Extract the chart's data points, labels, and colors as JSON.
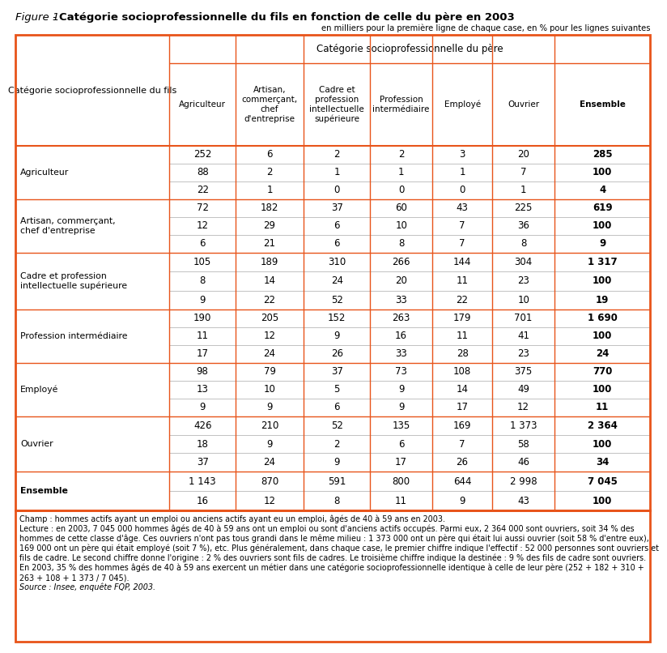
{
  "title_italic": "Figure 1",
  "title_dash": " - ",
  "title_bold": "Catégorie socioprofessionnelle du fils en fonction de celle du père en 2003",
  "subtitle": "en milliers pour la première ligne de chaque case, en % pour les lignes suivantes",
  "orange": "#E8541A",
  "col_header_main": "Catégorie socioprofessionnelle du père",
  "row_header_label": "Catégorie socioprofessionnelle du fils",
  "col_headers": [
    "Agriculteur",
    "Artisan,\ncommerçant,\nchef\nd'entreprise",
    "Cadre et\nprofession\nintellectuelle\nsupérieure",
    "Profession\nintermédiaire",
    "Employé",
    "Ouvrier",
    "Ensemble"
  ],
  "row_labels": [
    "Agriculteur",
    "Artisan, commerçant,\nchef d'entreprise",
    "Cadre et profession\nintellectuelle supérieure",
    "Profession intermédiaire",
    "Employé",
    "Ouvrier",
    "Ensemble"
  ],
  "data": [
    [
      [
        "252",
        "6",
        "2",
        "2",
        "3",
        "20",
        "285"
      ],
      [
        "88",
        "2",
        "1",
        "1",
        "1",
        "7",
        "100"
      ],
      [
        "22",
        "1",
        "0",
        "0",
        "0",
        "1",
        "4"
      ]
    ],
    [
      [
        "72",
        "182",
        "37",
        "60",
        "43",
        "225",
        "619"
      ],
      [
        "12",
        "29",
        "6",
        "10",
        "7",
        "36",
        "100"
      ],
      [
        "6",
        "21",
        "6",
        "8",
        "7",
        "8",
        "9"
      ]
    ],
    [
      [
        "105",
        "189",
        "310",
        "266",
        "144",
        "304",
        "1 317"
      ],
      [
        "8",
        "14",
        "24",
        "20",
        "11",
        "23",
        "100"
      ],
      [
        "9",
        "22",
        "52",
        "33",
        "22",
        "10",
        "19"
      ]
    ],
    [
      [
        "190",
        "205",
        "152",
        "263",
        "179",
        "701",
        "1 690"
      ],
      [
        "11",
        "12",
        "9",
        "16",
        "11",
        "41",
        "100"
      ],
      [
        "17",
        "24",
        "26",
        "33",
        "28",
        "23",
        "24"
      ]
    ],
    [
      [
        "98",
        "79",
        "37",
        "73",
        "108",
        "375",
        "770"
      ],
      [
        "13",
        "10",
        "5",
        "9",
        "14",
        "49",
        "100"
      ],
      [
        "9",
        "9",
        "6",
        "9",
        "17",
        "12",
        "11"
      ]
    ],
    [
      [
        "426",
        "210",
        "52",
        "135",
        "169",
        "1 373",
        "2 364"
      ],
      [
        "18",
        "9",
        "2",
        "6",
        "7",
        "58",
        "100"
      ],
      [
        "37",
        "24",
        "9",
        "17",
        "26",
        "46",
        "34"
      ]
    ],
    [
      [
        "1 143",
        "870",
        "591",
        "800",
        "644",
        "2 998",
        "7 045"
      ],
      [
        "16",
        "12",
        "8",
        "11",
        "9",
        "43",
        "100"
      ]
    ]
  ],
  "footer_lines": [
    "Champ : hommes actifs ayant un emploi ou anciens actifs ayant eu un emploi, âgés de 40 à 59 ans en 2003.",
    "Lecture : en 2003, 7 045 000 hommes âgés de 40 à 59 ans ont un emploi ou sont d'anciens actifs occupés. Parmi eux, 2 364 000 sont ouvriers, soit 34 % des",
    "hommes de cette classe d'âge. Ces ouvriers n'ont pas tous grandi dans le même milieu : 1 373 000 ont un père qui était lui aussi ouvrier (soit 58 % d'entre eux),",
    "169 000 ont un père qui était employé (soit 7 %), etc. Plus généralement, dans chaque case, le premier chiffre indique l'effectif : 52 000 personnes sont ouvriers et",
    "fils de cadre. Le second chiffre donne l'origine : 2 % des ouvriers sont fils de cadres. Le troisième chiffre indique la destinée : 9 % des fils de cadre sont ouvriers.",
    "En 2003, 35 % des hommes âgés de 40 à 59 ans exercent un métier dans une catégorie socioprofessionnelle identique à celle de leur père (252 + 182 + 310 +",
    "263 + 108 + 1 373 / 7 045).",
    "Source : Insee, enquête FQP, 2003."
  ],
  "footer_italic_line": 7
}
